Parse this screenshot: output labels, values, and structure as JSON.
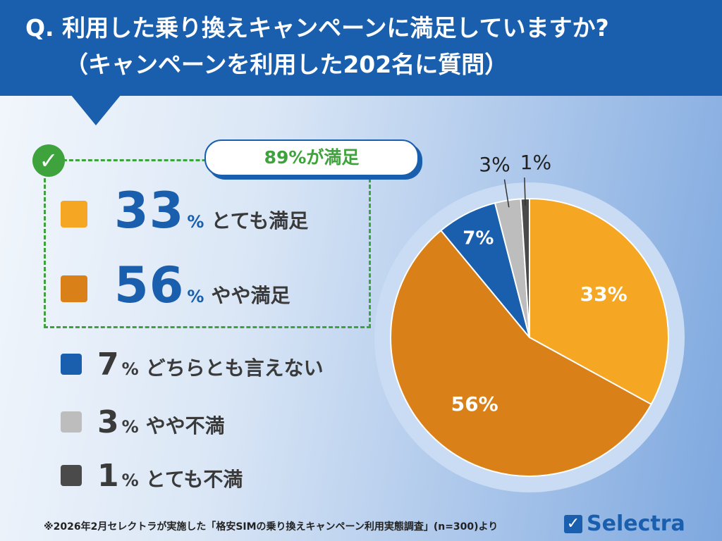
{
  "header": {
    "title_line1": "Q. 利用した乗り換えキャンペーンに満足していますか?",
    "title_line1_a": "Q. 利用した乗り換えキャンペーンに満足していますか?",
    "title_line2": "（キャンペーンを利用した202名に質問）",
    "line1": "Q. 利用した乗り換えキャンペーンに満足していますか?"
  },
  "callout": "89%が満足",
  "legend": [
    {
      "value": "33",
      "unit": "%",
      "label": "とても満足",
      "color": "#f5a623"
    },
    {
      "value": "56",
      "unit": "%",
      "label": "やや満足",
      "color": "#d98019"
    },
    {
      "value": "7",
      "unit": "%",
      "label": "どちらとも言えない",
      "color": "#1a5fad"
    },
    {
      "value": "3",
      "unit": "%",
      "label": "やや不満",
      "color": "#bdbdbd"
    },
    {
      "value": "1",
      "unit": "%",
      "label": "とても不満",
      "color": "#4a4a4a"
    }
  ],
  "chart_data": {
    "type": "pie",
    "categories": [
      "とても満足",
      "やや満足",
      "どちらとも言えない",
      "やや不満",
      "とても不満"
    ],
    "values": [
      33,
      56,
      7,
      3,
      1
    ],
    "data_labels": [
      "33%",
      "56%",
      "7%",
      "3%",
      "1%"
    ],
    "colors": [
      "#f5a623",
      "#d98019",
      "#1a5fad",
      "#bdbdbd",
      "#4a4a4a"
    ],
    "start": "top",
    "direction": "clockwise"
  },
  "footer": "※2026年2月セレクトラが実施した「格安SIMの乗り換えキャンペーン利用実態調査」(n=300)より",
  "logo": "Selectra"
}
